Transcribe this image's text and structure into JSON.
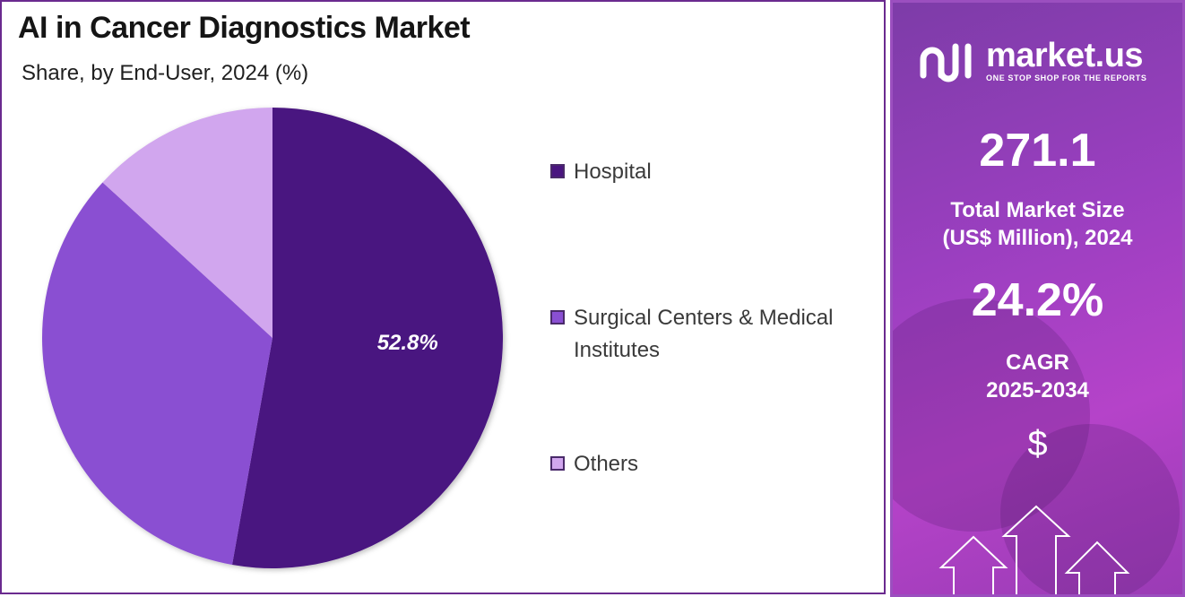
{
  "chart_data": {
    "type": "pie",
    "title": "AI in Cancer Diagnostics Market",
    "subtitle": "Share, by End-User, 2024 (%)",
    "categories": [
      "Hospital",
      "Surgical Centers & Medical Institutes",
      "Others"
    ],
    "values": [
      52.8,
      34.0,
      13.2
    ],
    "colors": [
      "#4a1580",
      "#8a4fd2",
      "#d1a6ee"
    ],
    "data_labels": [
      "52.8%",
      "",
      ""
    ],
    "legend_position": "right"
  },
  "brand": {
    "name": "market.us",
    "tagline": "ONE STOP SHOP FOR THE REPORTS"
  },
  "stats": {
    "market_size_value": "271.1",
    "market_size_label_line1": "Total Market Size",
    "market_size_label_line2": "(US$ Million), 2024",
    "cagr_value": "24.2%",
    "cagr_label_line1": "CAGR",
    "cagr_label_line2": "2025-2034",
    "currency_symbol": "$"
  },
  "icons": [
    "logo-icon",
    "dollar-icon",
    "growth-arrows-icon"
  ]
}
